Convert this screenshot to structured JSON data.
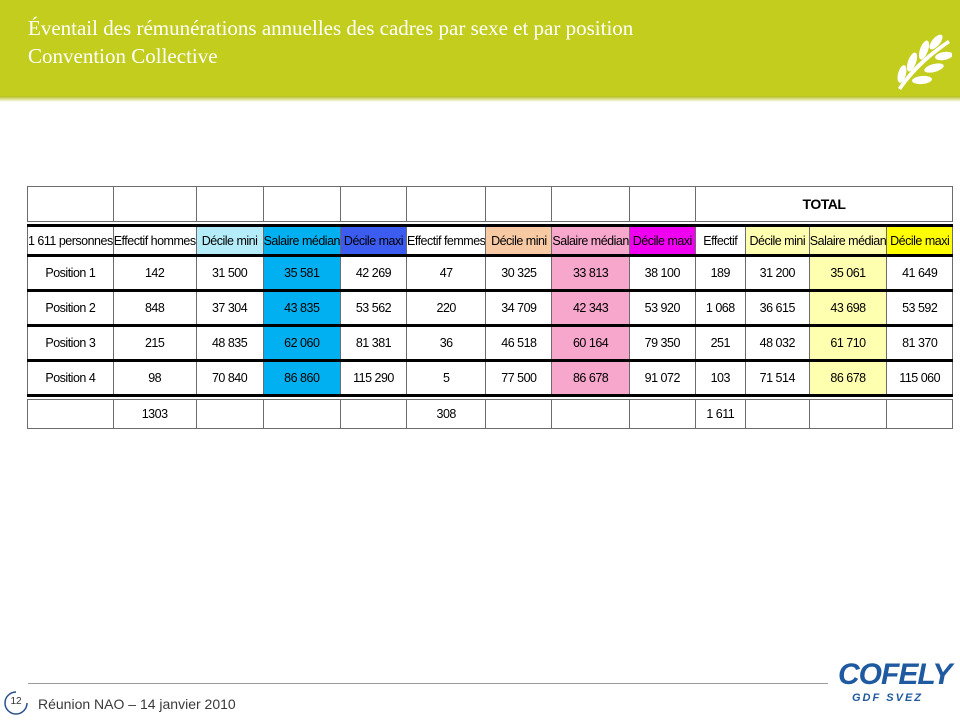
{
  "slide": {
    "title_line1": "Éventail des rémunérations annuelles des cadres par sexe et par position",
    "title_line2": "Convention Collective",
    "total_label": "TOTAL",
    "page_number": "12",
    "footer": "Réunion NAO – 14 janvier 2010",
    "brand_name": "COFELY",
    "brand_sub": "GDF SVEZ"
  },
  "table": {
    "headers": [
      "1 611 personnes",
      "Effectif hommes",
      "Décile mini",
      "Salaire médian",
      "Décile maxi",
      "Effectif femmes",
      "Décile mini",
      "Salaire médian",
      "Décile maxi",
      "Effectif",
      "Décile mini",
      "Salaire médian",
      "Décile maxi"
    ],
    "rows": [
      [
        "Position 1",
        "142",
        "31 500",
        "35 581",
        "42 269",
        "47",
        "30 325",
        "33 813",
        "38 100",
        "189",
        "31 200",
        "35 061",
        "41 649"
      ],
      [
        "Position 2",
        "848",
        "37 304",
        "43 835",
        "53 562",
        "220",
        "34 709",
        "42 343",
        "53 920",
        "1 068",
        "36 615",
        "43 698",
        "53 592"
      ],
      [
        "Position 3",
        "215",
        "48 835",
        "62 060",
        "81 381",
        "36",
        "46 518",
        "60 164",
        "79 350",
        "251",
        "48 032",
        "61 710",
        "81 370"
      ],
      [
        "Position 4",
        "98",
        "70 840",
        "86 860",
        "115 290",
        "5",
        "77 500",
        "86 678",
        "91 072",
        "103",
        "71 514",
        "86 678",
        "115 060"
      ]
    ],
    "totals": [
      "",
      "1303",
      "",
      "",
      "",
      "308",
      "",
      "",
      "",
      "1 611",
      "",
      "",
      ""
    ]
  }
}
